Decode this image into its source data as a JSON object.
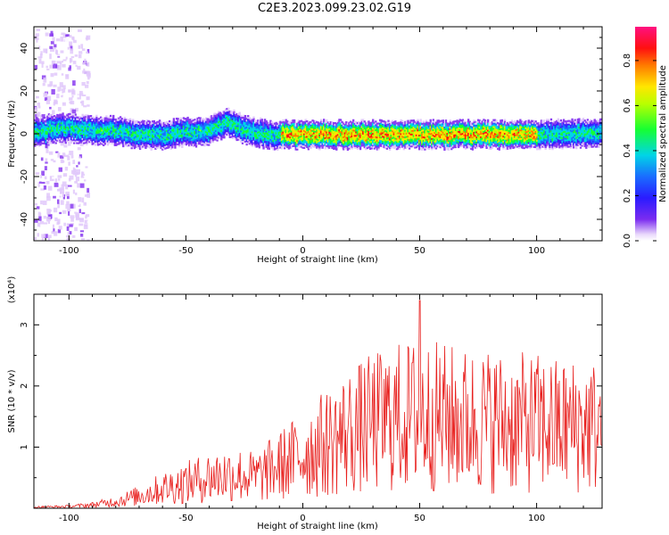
{
  "figure": {
    "title": "C2E3.2023.099.23.02.G19"
  },
  "colors": {
    "line": "#e8201e",
    "frame": "#000000"
  },
  "chart_data": [
    {
      "type": "heatmap",
      "title": "C2E3.2023.099.23.02.G19",
      "xlabel": "Height of straight line (km)",
      "ylabel": "Frequency (Hz)",
      "xlim": [
        -115,
        128
      ],
      "ylim": [
        -50,
        50
      ],
      "xticks": [
        -100,
        -50,
        0,
        50,
        100
      ],
      "yticks": [
        -40,
        -20,
        0,
        20,
        40
      ],
      "colorbar": {
        "label": "Normalized spectral amplitude",
        "range": [
          0,
          0.95
        ],
        "ticks": [
          0.0,
          0.2,
          0.4,
          0.6,
          0.8
        ],
        "colormap": "rainbow"
      },
      "ridge": {
        "description": "Main spectral ridge centered near 0 Hz across height",
        "center_hz": [
          [
            -110,
            3
          ],
          [
            -100,
            3
          ],
          [
            -90,
            2
          ],
          [
            -80,
            2
          ],
          [
            -70,
            0
          ],
          [
            -60,
            0
          ],
          [
            -50,
            1
          ],
          [
            -40,
            2
          ],
          [
            -33,
            6
          ],
          [
            -25,
            2
          ],
          [
            -15,
            0
          ],
          [
            0,
            0
          ],
          [
            25,
            0
          ],
          [
            50,
            0
          ],
          [
            75,
            0
          ],
          [
            100,
            0
          ],
          [
            128,
            1
          ]
        ],
        "high_amplitude_segment_km": [
          -10,
          100
        ],
        "noise_region_km": [
          -115,
          -92
        ]
      }
    },
    {
      "type": "line",
      "xlabel": "Height of straight line (km)",
      "ylabel": "SNR (10 * v/v)",
      "y_multiplier": "(x10⁴)",
      "xlim": [
        -115,
        128
      ],
      "ylim": [
        0,
        3.5
      ],
      "xticks": [
        -100,
        -50,
        0,
        50,
        100
      ],
      "yticks": [
        1,
        2,
        3
      ],
      "series": [
        {
          "envelope": {
            "x": [
              -115,
              -100,
              -90,
              -80,
              -70,
              -60,
              -50,
              -40,
              -30,
              -20,
              -10,
              0,
              10,
              20,
              30,
              40,
              50,
              60,
              70,
              80,
              90,
              100,
              110,
              120,
              128
            ],
            "y": [
              0.02,
              0.03,
              0.06,
              0.12,
              0.22,
              0.35,
              0.45,
              0.55,
              0.6,
              0.55,
              0.75,
              0.95,
              1.15,
              1.35,
              1.5,
              1.6,
              1.65,
              1.6,
              1.55,
              1.55,
              1.5,
              1.5,
              1.45,
              1.45,
              1.45
            ]
          },
          "peak": {
            "x": 50,
            "y": 3.4
          }
        }
      ]
    }
  ]
}
